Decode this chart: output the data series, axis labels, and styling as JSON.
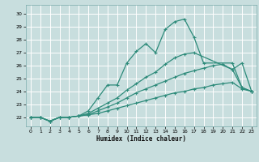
{
  "xlabel": "Humidex (Indice chaleur)",
  "bg_color": "#c8dede",
  "grid_color": "#ffffff",
  "line_color": "#2d8b7a",
  "xlim": [
    -0.5,
    23.5
  ],
  "ylim": [
    21.3,
    30.7
  ],
  "xticks": [
    0,
    1,
    2,
    3,
    4,
    5,
    6,
    7,
    8,
    9,
    10,
    11,
    12,
    13,
    14,
    15,
    16,
    17,
    18,
    19,
    20,
    21,
    22,
    23
  ],
  "yticks": [
    22,
    23,
    24,
    25,
    26,
    27,
    28,
    29,
    30
  ],
  "lines": [
    {
      "x": [
        0,
        1,
        2,
        3,
        4,
        5,
        6,
        7,
        8,
        9,
        10,
        11,
        12,
        13,
        14,
        15,
        16,
        17,
        18,
        21,
        22,
        23
      ],
      "y": [
        22,
        22,
        21.7,
        22.0,
        22.0,
        22.1,
        22.5,
        23.5,
        24.5,
        24.5,
        26.2,
        27.1,
        27.7,
        27.0,
        28.8,
        29.4,
        29.6,
        28.2,
        26.2,
        26.2,
        24.3,
        24.0
      ]
    },
    {
      "x": [
        0,
        1,
        2,
        3,
        4,
        5,
        6,
        7,
        8,
        9,
        10,
        11,
        12,
        13,
        14,
        15,
        16,
        17,
        21,
        22,
        23
      ],
      "y": [
        22,
        22,
        21.7,
        22.0,
        22.0,
        22.1,
        22.3,
        22.7,
        23.1,
        23.5,
        24.1,
        24.6,
        25.1,
        25.5,
        26.1,
        26.6,
        26.9,
        27.0,
        25.7,
        26.2,
        24.0
      ]
    },
    {
      "x": [
        0,
        1,
        2,
        3,
        4,
        5,
        6,
        7,
        8,
        9,
        10,
        11,
        12,
        13,
        14,
        15,
        16,
        17,
        18,
        19,
        20,
        21,
        22,
        23
      ],
      "y": [
        22,
        22,
        21.7,
        22.0,
        22.0,
        22.1,
        22.2,
        22.5,
        22.8,
        23.1,
        23.5,
        23.9,
        24.2,
        24.5,
        24.8,
        25.1,
        25.4,
        25.6,
        25.8,
        26.0,
        26.1,
        25.7,
        24.3,
        24.0
      ]
    },
    {
      "x": [
        0,
        1,
        2,
        3,
        4,
        5,
        6,
        7,
        8,
        9,
        10,
        11,
        12,
        13,
        14,
        15,
        16,
        17,
        18,
        19,
        20,
        21,
        22,
        23
      ],
      "y": [
        22,
        22,
        21.7,
        22.0,
        22.0,
        22.1,
        22.2,
        22.3,
        22.5,
        22.7,
        22.9,
        23.1,
        23.3,
        23.5,
        23.7,
        23.9,
        24.0,
        24.2,
        24.3,
        24.5,
        24.6,
        24.7,
        24.2,
        24.0
      ]
    }
  ]
}
